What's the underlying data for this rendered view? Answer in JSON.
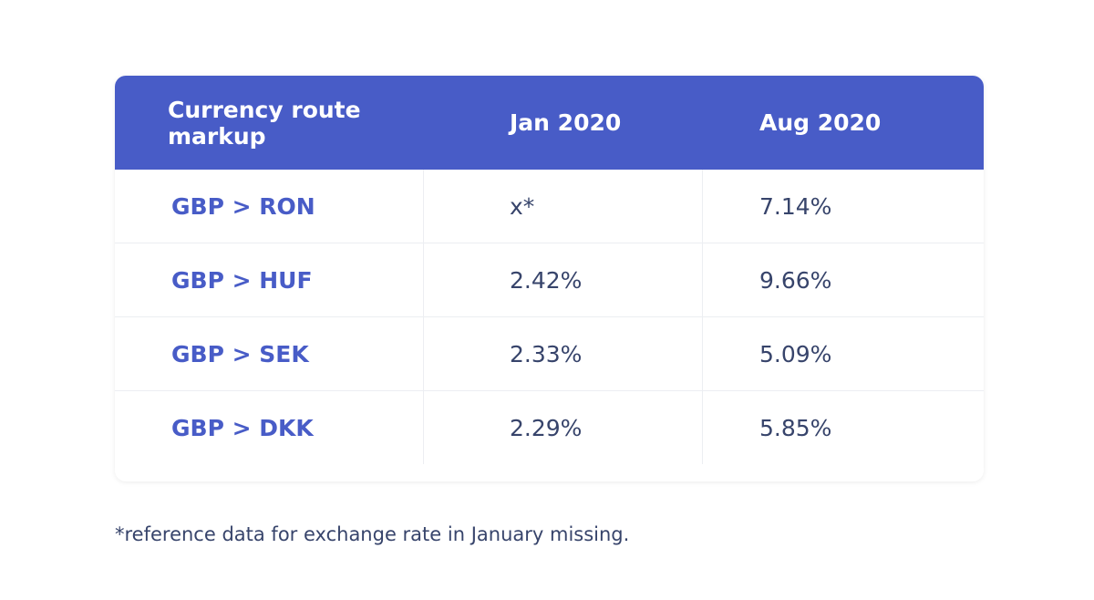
{
  "table": {
    "header": [
      "Currency route markup",
      "Jan 2020",
      "Aug 2020"
    ],
    "rows": [
      [
        "GBP > RON",
        "x*",
        "7.14%"
      ],
      [
        "GBP > HUF",
        "2.42%",
        "9.66%"
      ],
      [
        "GBP > SEK",
        "2.33%",
        "5.09%"
      ],
      [
        "GBP > DKK",
        "2.29%",
        "5.85%"
      ]
    ]
  },
  "footnote": "*reference data for exchange rate in January missing."
}
